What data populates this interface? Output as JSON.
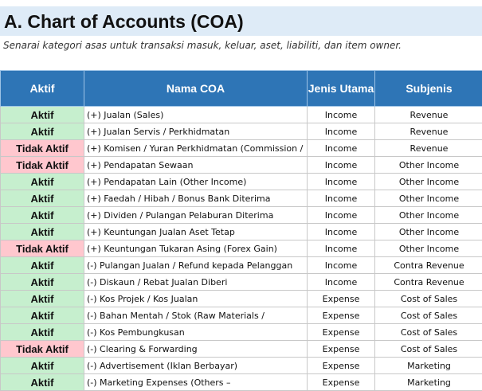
{
  "header": {
    "title": "A. Chart of Accounts (COA)",
    "subtitle": "Senarai kategori asas untuk transaksi masuk, keluar, aset, liabiliti, dan item owner."
  },
  "table": {
    "columns": [
      "Aktif",
      "Nama COA",
      "Jenis Utama",
      "Subjenis"
    ],
    "rows": [
      [
        "Aktif",
        "(+) Jualan (Sales)",
        "Income",
        "Revenue"
      ],
      [
        "Aktif",
        "(+) Jualan Servis / Perkhidmatan",
        "Income",
        "Revenue"
      ],
      [
        "Tidak Aktif",
        "(+) Komisen / Yuran Perkhidmatan (Commission /",
        "Income",
        "Revenue"
      ],
      [
        "Tidak Aktif",
        "(+) Pendapatan Sewaan",
        "Income",
        "Other Income"
      ],
      [
        "Aktif",
        "(+) Pendapatan Lain (Other Income)",
        "Income",
        "Other Income"
      ],
      [
        "Aktif",
        "(+) Faedah / Hibah / Bonus Bank Diterima",
        "Income",
        "Other Income"
      ],
      [
        "Aktif",
        "(+) Dividen / Pulangan Pelaburan Diterima",
        "Income",
        "Other Income"
      ],
      [
        "Aktif",
        "(+) Keuntungan Jualan Aset Tetap",
        "Income",
        "Other Income"
      ],
      [
        "Tidak Aktif",
        "(+) Keuntungan Tukaran Asing (Forex Gain)",
        "Income",
        "Other Income"
      ],
      [
        "Aktif",
        "(-) Pulangan Jualan / Refund kepada Pelanggan",
        "Income",
        "Contra Revenue"
      ],
      [
        "Aktif",
        "(-) Diskaun / Rebat Jualan Diberi",
        "Income",
        "Contra Revenue"
      ],
      [
        "Aktif",
        "(-) Kos Projek / Kos Jualan",
        "Expense",
        "Cost of Sales"
      ],
      [
        "Aktif",
        "(-) Bahan Mentah / Stok (Raw Materials /",
        "Expense",
        "Cost of Sales"
      ],
      [
        "Aktif",
        "(-) Kos Pembungkusan",
        "Expense",
        "Cost of Sales"
      ],
      [
        "Tidak Aktif",
        "(-) Clearing & Forwarding",
        "Expense",
        "Cost of Sales"
      ],
      [
        "Aktif",
        "(-) Advertisement (Iklan Berbayar)",
        "Expense",
        "Marketing"
      ],
      [
        "Aktif",
        "(-) Marketing Expenses (Others –",
        "Expense",
        "Marketing"
      ]
    ]
  }
}
